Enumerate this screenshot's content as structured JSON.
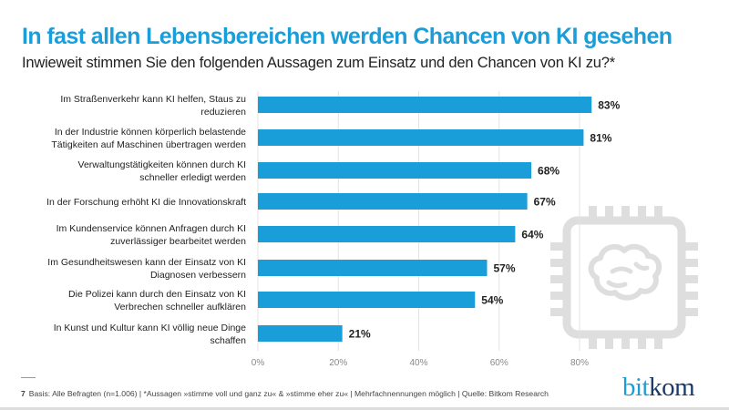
{
  "chart_data": {
    "type": "bar",
    "orientation": "horizontal",
    "title": "In fast allen Lebensbereichen werden Chancen von KI gesehen",
    "subtitle": "Inwieweit stimmen Sie den folgenden Aussagen zum Einsatz und den Chancen von KI zu?*",
    "categories": [
      [
        "Im Straßenverkehr kann KI helfen, Staus zu",
        "reduzieren"
      ],
      [
        "In der Industrie können körperlich belastende",
        "Tätigkeiten auf Maschinen übertragen werden"
      ],
      [
        "Verwaltungstätigkeiten können durch KI",
        "schneller erledigt werden"
      ],
      [
        "In der Forschung erhöht KI die Innovationskraft"
      ],
      [
        "Im Kundenservice können Anfragen durch KI",
        "zuverlässiger bearbeitet werden"
      ],
      [
        "Im Gesundheitswesen kann der Einsatz von KI",
        "Diagnosen verbessern"
      ],
      [
        "Die Polizei kann durch den Einsatz von KI",
        "Verbrechen schneller aufklären"
      ],
      [
        "In Kunst und Kultur kann KI völlig neue Dinge",
        "schaffen"
      ]
    ],
    "values": [
      83,
      81,
      68,
      67,
      64,
      57,
      54,
      21
    ],
    "value_labels": [
      "83%",
      "81%",
      "68%",
      "67%",
      "64%",
      "57%",
      "54%",
      "21%"
    ],
    "xlim": [
      0,
      80
    ],
    "xticks": [
      0,
      20,
      40,
      60,
      80
    ],
    "xtick_labels": [
      "0%",
      "20%",
      "40%",
      "60%",
      "80%"
    ],
    "grid": true,
    "bar_color": "#1a9ed9"
  },
  "footer": {
    "page": "7",
    "note": "Basis: Alle Befragten (n=1.006) | *Aussagen »stimme voll und ganz zu« & »stimme eher zu« | Mehrfachnennungen möglich  | Quelle: Bitkom Research"
  },
  "logo": {
    "part1": "bit",
    "part2": "kom"
  },
  "icons": {
    "decoration": "chip-brain-icon"
  }
}
